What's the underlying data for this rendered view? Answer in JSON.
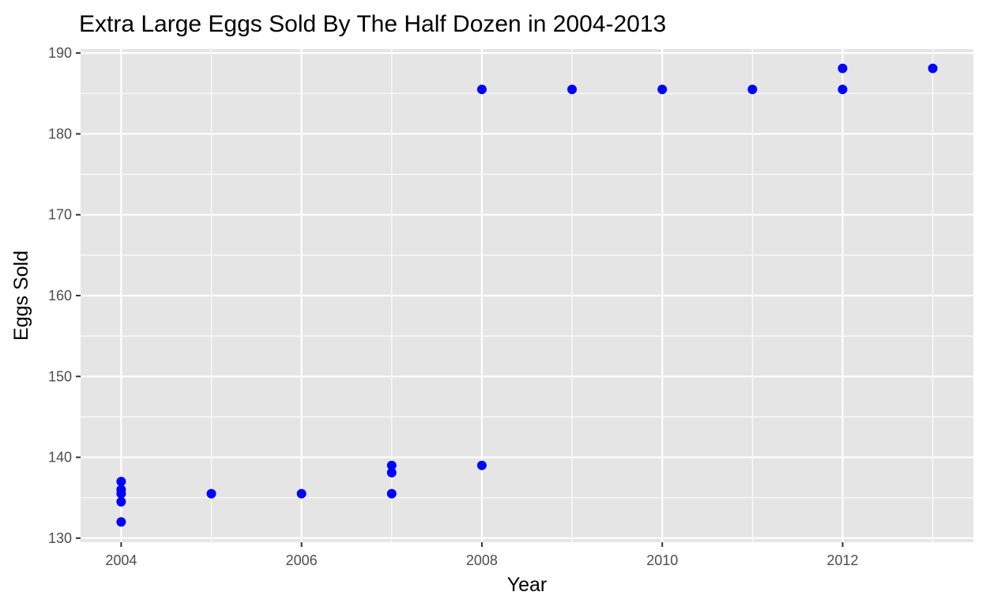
{
  "chart_data": {
    "type": "scatter",
    "title": "Extra Large Eggs Sold By The Half Dozen in 2004-2013",
    "xlabel": "Year",
    "ylabel": "Eggs Sold",
    "xlim": [
      2003.55,
      2013.45
    ],
    "ylim": [
      129.5,
      190.5
    ],
    "x_ticks": [
      2004,
      2006,
      2008,
      2010,
      2012
    ],
    "x_tick_labels": [
      "2004",
      "2006",
      "2008",
      "2010",
      "2012"
    ],
    "y_ticks": [
      130,
      140,
      150,
      160,
      170,
      180,
      190
    ],
    "y_tick_labels": [
      "130",
      "140",
      "150",
      "160",
      "170",
      "180",
      "190"
    ],
    "grid": true,
    "colors": {
      "panel": "#e5e5e5",
      "grid": "#ffffff",
      "point": "#0000ff",
      "tick": "#333333"
    },
    "points": [
      {
        "x": 2004,
        "y": 137.0
      },
      {
        "x": 2004,
        "y": 136.0
      },
      {
        "x": 2004,
        "y": 135.5
      },
      {
        "x": 2004,
        "y": 134.5
      },
      {
        "x": 2004,
        "y": 132.0
      },
      {
        "x": 2005,
        "y": 135.5
      },
      {
        "x": 2006,
        "y": 135.5
      },
      {
        "x": 2007,
        "y": 139.0
      },
      {
        "x": 2007,
        "y": 138.1
      },
      {
        "x": 2007,
        "y": 135.5
      },
      {
        "x": 2008,
        "y": 139.0
      },
      {
        "x": 2008,
        "y": 185.5
      },
      {
        "x": 2009,
        "y": 185.5
      },
      {
        "x": 2010,
        "y": 185.5
      },
      {
        "x": 2011,
        "y": 185.5
      },
      {
        "x": 2012,
        "y": 188.1
      },
      {
        "x": 2012,
        "y": 185.5
      },
      {
        "x": 2013,
        "y": 188.1
      }
    ]
  }
}
